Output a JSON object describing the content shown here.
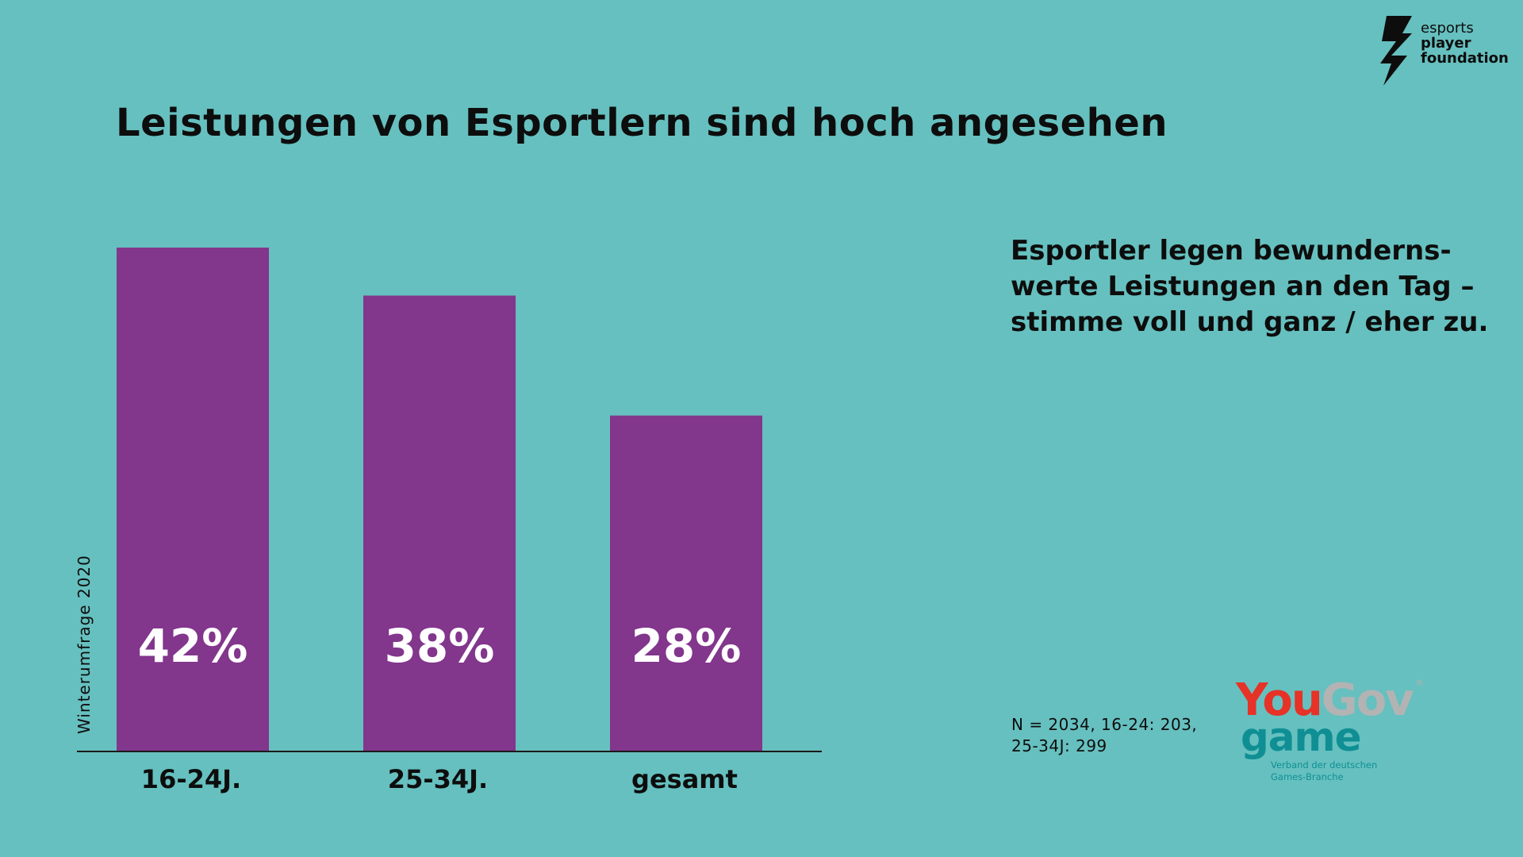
{
  "brand": {
    "logo_lines": [
      "esports",
      "player",
      "foundation"
    ]
  },
  "title": "Leistungen von Esportlern sind hoch angesehen",
  "note_lines": [
    "Esportler legen bewunderns-",
    "werte Leistungen an den Tag –",
    "stimme voll und ganz / eher zu."
  ],
  "side_label": "Winterumfrage 2020",
  "sample_lines": [
    "N = 2034, 16-24: 203,",
    "25-34J: 299"
  ],
  "partner": {
    "yougov_you": "You",
    "yougov_gov": "Gov",
    "reg_mark": "®",
    "game": "game",
    "game_sub_lines": [
      "Verband der deutschen",
      "Games-Branche"
    ]
  },
  "colors": {
    "background": "#66c0bf",
    "bar": "#82368c",
    "bar_label": "#ffffff",
    "text": "#0d0d0d",
    "yougov_red": "#e63227",
    "yougov_grey": "#b3b3b3",
    "game_teal": "#0f8f94"
  },
  "chart_data": {
    "type": "bar",
    "categories": [
      "16-24J.",
      "25-34J.",
      "gesamt"
    ],
    "values": [
      42,
      38,
      28
    ],
    "value_labels": [
      "42%",
      "38%",
      "28%"
    ],
    "unit": "%",
    "ylim": [
      0,
      42
    ],
    "grid": false,
    "title": "Leistungen von Esportlern sind hoch angesehen"
  }
}
